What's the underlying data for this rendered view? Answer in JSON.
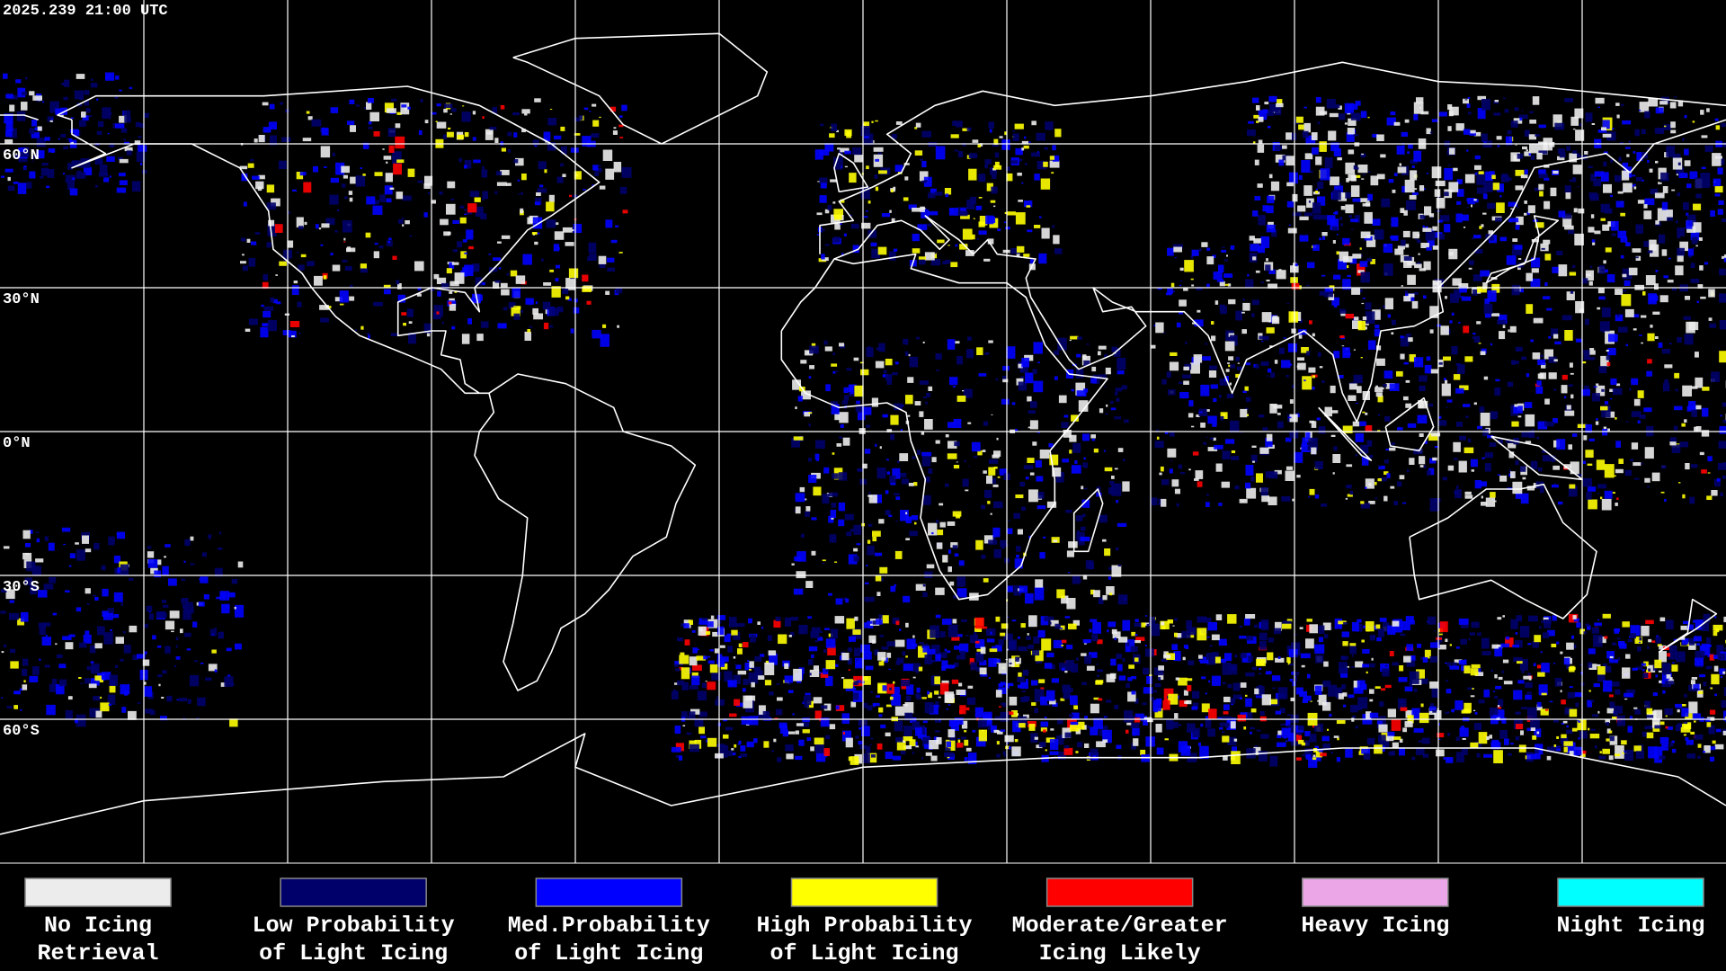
{
  "header": {
    "timestamp": "2025.239 21:00 UTC"
  },
  "latitude_lines": [
    {
      "value": 60,
      "label": "60°N"
    },
    {
      "value": 30,
      "label": "30°N"
    },
    {
      "value": 0,
      "label": "0°N"
    },
    {
      "value": -30,
      "label": "30°S"
    },
    {
      "value": -60,
      "label": "60°S"
    }
  ],
  "legend": [
    {
      "lines": [
        "No Icing",
        "Retrieval"
      ],
      "color": "#ececec"
    },
    {
      "lines": [
        "Low Probability",
        "of Light Icing"
      ],
      "color": "#00006b"
    },
    {
      "lines": [
        "Med.Probability",
        "of Light Icing"
      ],
      "color": "#0000ff"
    },
    {
      "lines": [
        "High Probability",
        "of Light Icing"
      ],
      "color": "#ffff00"
    },
    {
      "lines": [
        "Moderate/Greater",
        "Icing Likely"
      ],
      "color": "#ff0000"
    },
    {
      "lines": [
        "Heavy Icing"
      ],
      "color": "#eaa6e6"
    },
    {
      "lines": [
        "Night Icing"
      ],
      "color": "#00ffff"
    }
  ]
}
